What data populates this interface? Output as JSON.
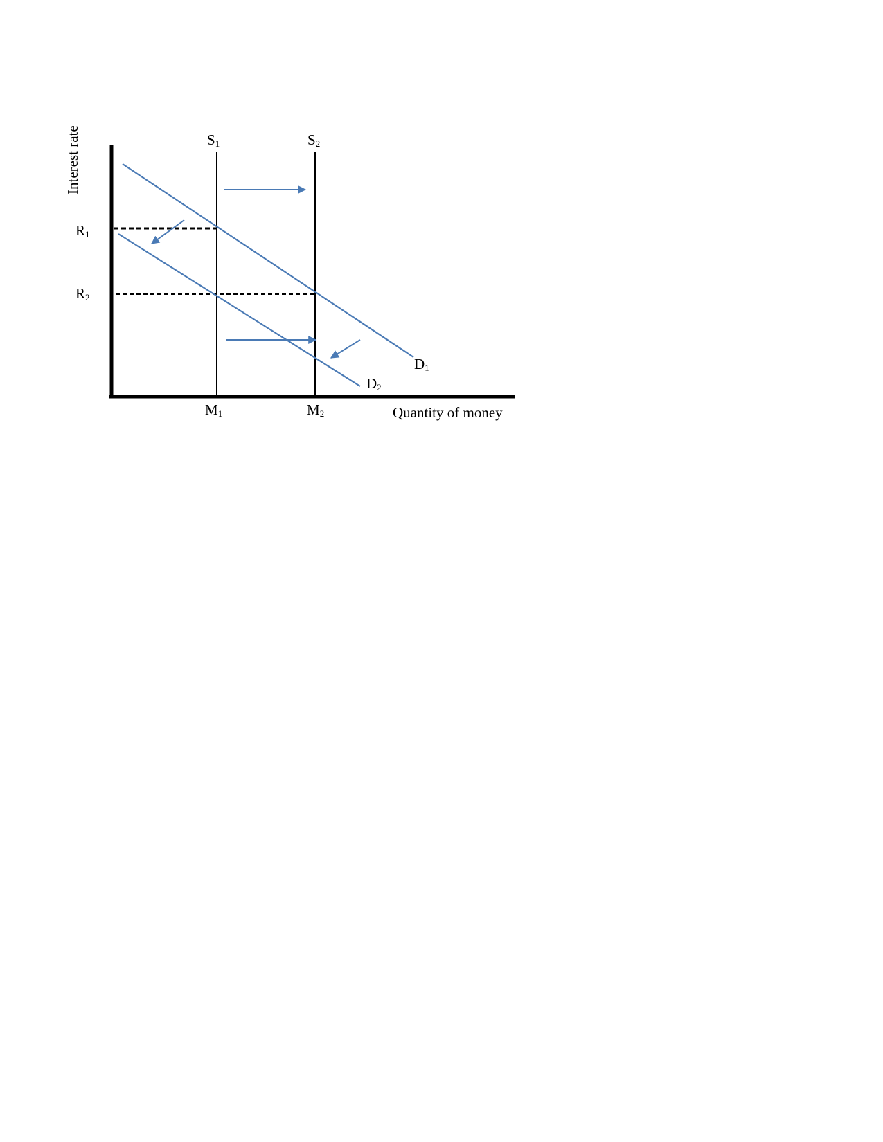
{
  "diagram": {
    "y_axis_label": "Interest rate",
    "x_axis_label": "Quantity of money",
    "supply_curves": [
      {
        "label": "S",
        "subscript": "1"
      },
      {
        "label": "S",
        "subscript": "2"
      }
    ],
    "demand_curves": [
      {
        "label": "D",
        "subscript": "1"
      },
      {
        "label": "D",
        "subscript": "2"
      }
    ],
    "rates": [
      {
        "label": "R",
        "subscript": "1"
      },
      {
        "label": "R",
        "subscript": "2"
      }
    ],
    "quantities": [
      {
        "label": "M",
        "subscript": "1"
      },
      {
        "label": "M",
        "subscript": "2"
      }
    ],
    "colors": {
      "demand": "#4a7ab5",
      "arrows": "#4a7ab5",
      "axes": "#000000"
    }
  }
}
